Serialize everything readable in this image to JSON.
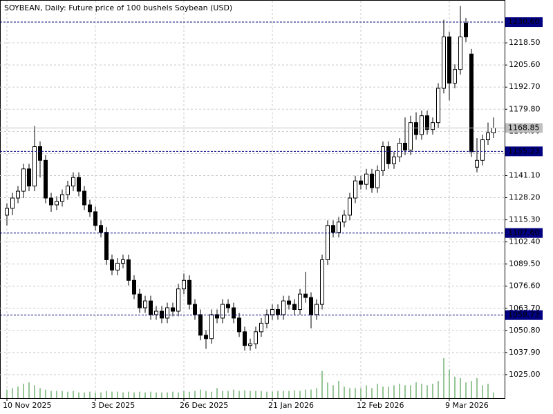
{
  "chart_data": {
    "type": "candlestick",
    "title": "SOYBEAN, Daily:  Future price of 100 bushels Soybean (USD)",
    "categories": [
      "10 Nov 2025",
      null,
      null,
      null,
      null,
      null,
      null,
      null,
      null,
      null,
      null,
      null,
      null,
      null,
      null,
      null,
      "3 Dec 2025",
      null,
      null,
      null,
      null,
      null,
      null,
      null,
      null,
      null,
      null,
      null,
      null,
      null,
      null,
      null,
      "26 Dec 2025",
      null,
      null,
      null,
      null,
      null,
      null,
      null,
      null,
      null,
      null,
      null,
      null,
      null,
      null,
      null,
      "21 Jan 2026",
      null,
      null,
      null,
      null,
      null,
      null,
      null,
      null,
      null,
      null,
      null,
      null,
      null,
      null,
      null,
      "12 Feb 2026",
      null,
      null,
      null,
      null,
      null,
      null,
      null,
      null,
      null,
      null,
      null,
      null,
      null,
      null,
      null,
      "9 Mar 2026",
      null,
      null,
      null,
      null,
      null,
      null,
      null,
      null
    ],
    "open": [
      1118,
      1122,
      1128,
      1132,
      1145,
      1135,
      1158,
      1150,
      1128,
      1124,
      1126,
      1130,
      1135,
      1140,
      1132,
      1124,
      1120,
      1112,
      1108,
      1092,
      1086,
      1090,
      1092,
      1080,
      1072,
      1064,
      1068,
      1060,
      1062,
      1058,
      1064,
      1062,
      1075,
      1080,
      1066,
      1060,
      1048,
      1046,
      1060,
      1058,
      1066,
      1064,
      1058,
      1050,
      1042,
      1043,
      1050,
      1055,
      1060,
      1063,
      1060,
      1068,
      1066,
      1063,
      1072,
      1070,
      1060,
      1066,
      1092,
      1112,
      1108,
      1114,
      1118,
      1128,
      1138,
      1136,
      1142,
      1134,
      1144,
      1158,
      1148,
      1152,
      1160,
      1156,
      1172,
      1165,
      1176,
      1168,
      1172,
      1192,
      1222,
      1195,
      1203,
      1230,
      1212,
      1146,
      1150,
      1162,
      1166
    ],
    "high": [
      1125,
      1131,
      1135,
      1148,
      1148,
      1170,
      1161,
      1153,
      1131,
      1129,
      1133,
      1138,
      1143,
      1143,
      1135,
      1127,
      1123,
      1115,
      1111,
      1095,
      1093,
      1095,
      1095,
      1083,
      1075,
      1071,
      1071,
      1065,
      1065,
      1067,
      1067,
      1078,
      1084,
      1083,
      1069,
      1063,
      1051,
      1063,
      1063,
      1069,
      1069,
      1067,
      1061,
      1053,
      1046,
      1053,
      1058,
      1063,
      1066,
      1066,
      1071,
      1071,
      1069,
      1075,
      1085,
      1073,
      1069,
      1095,
      1115,
      1115,
      1117,
      1121,
      1131,
      1141,
      1141,
      1145,
      1145,
      1147,
      1161,
      1161,
      1155,
      1163,
      1175,
      1176,
      1178,
      1179,
      1179,
      1175,
      1195,
      1232,
      1225,
      1206,
      1240,
      1233,
      1215,
      1163,
      1165,
      1172,
      1175
    ],
    "low": [
      1112,
      1118,
      1125,
      1128,
      1132,
      1132,
      1140,
      1125,
      1120,
      1121,
      1123,
      1127,
      1132,
      1129,
      1121,
      1117,
      1109,
      1105,
      1089,
      1083,
      1083,
      1087,
      1077,
      1069,
      1061,
      1061,
      1057,
      1057,
      1055,
      1055,
      1059,
      1059,
      1072,
      1063,
      1057,
      1045,
      1040,
      1043,
      1055,
      1055,
      1061,
      1055,
      1047,
      1039,
      1039,
      1040,
      1047,
      1052,
      1057,
      1057,
      1057,
      1063,
      1060,
      1060,
      1067,
      1052,
      1057,
      1063,
      1089,
      1105,
      1105,
      1111,
      1115,
      1125,
      1133,
      1133,
      1131,
      1131,
      1141,
      1145,
      1145,
      1149,
      1153,
      1153,
      1162,
      1162,
      1165,
      1165,
      1169,
      1189,
      1185,
      1192,
      1200,
      1219,
      1152,
      1143,
      1147,
      1159,
      1163
    ],
    "close": [
      1122,
      1128,
      1132,
      1145,
      1135,
      1158,
      1150,
      1128,
      1124,
      1126,
      1130,
      1135,
      1140,
      1132,
      1124,
      1120,
      1112,
      1108,
      1092,
      1086,
      1090,
      1092,
      1080,
      1072,
      1064,
      1068,
      1060,
      1062,
      1058,
      1064,
      1062,
      1075,
      1080,
      1066,
      1060,
      1048,
      1046,
      1060,
      1058,
      1066,
      1064,
      1058,
      1050,
      1042,
      1043,
      1050,
      1055,
      1060,
      1063,
      1060,
      1068,
      1066,
      1063,
      1072,
      1070,
      1060,
      1066,
      1092,
      1112,
      1108,
      1114,
      1118,
      1128,
      1138,
      1136,
      1142,
      1134,
      1144,
      1158,
      1148,
      1152,
      1160,
      1156,
      1172,
      1165,
      1176,
      1168,
      1172,
      1192,
      1222,
      1195,
      1203,
      1222,
      1222,
      1155,
      1150,
      1162,
      1166,
      1168.85
    ],
    "volume": [
      12,
      14,
      16,
      20,
      22,
      18,
      14,
      12,
      10,
      10,
      10,
      9,
      10,
      8,
      8,
      9,
      8,
      8,
      10,
      9,
      9,
      8,
      9,
      8,
      9,
      8,
      9,
      8,
      8,
      8,
      9,
      8,
      10,
      9,
      10,
      12,
      10,
      9,
      14,
      10,
      10,
      12,
      10,
      11,
      10,
      10,
      10,
      9,
      9,
      10,
      10,
      10,
      11,
      10,
      12,
      12,
      14,
      38,
      22,
      18,
      24,
      16,
      14,
      14,
      14,
      18,
      14,
      20,
      16,
      16,
      18,
      20,
      18,
      18,
      22,
      20,
      18,
      20,
      24,
      56,
      40,
      30,
      28,
      22,
      24,
      28,
      18,
      20,
      8
    ],
    "up_color": "#ffffff",
    "down_color": "#000000",
    "wick_color": "#000000",
    "volume_color": "#2e8b2e",
    "ylim": [
      1011.3,
      1243.1
    ],
    "yticks": [
      {
        "value": 1025,
        "label": "1025.00"
      },
      {
        "value": 1037.9,
        "label": "1037.90"
      },
      {
        "value": 1050.8,
        "label": "1050.80"
      },
      {
        "value": 1063.7,
        "label": "1063.70"
      },
      {
        "value": 1076.6,
        "label": "1076.60"
      },
      {
        "value": 1089.5,
        "label": "1089.50"
      },
      {
        "value": 1102.4,
        "label": "1102.40"
      },
      {
        "value": 1115.3,
        "label": "1115.30"
      },
      {
        "value": 1128.2,
        "label": "1128.20"
      },
      {
        "value": 1141.1,
        "label": "1141.10"
      },
      {
        "value": 1154,
        "label": "1154.00"
      },
      {
        "value": 1166.9,
        "label": "1166.90"
      },
      {
        "value": 1179.8,
        "label": "1179.80"
      },
      {
        "value": 1192.7,
        "label": "1192.70"
      },
      {
        "value": 1205.6,
        "label": "1205.60"
      },
      {
        "value": 1218.5,
        "label": "1218.50"
      }
    ],
    "grid": true,
    "levels": [
      {
        "value": 1230.6,
        "label": "1230.60",
        "color": "#000080"
      },
      {
        "value": 1155.23,
        "label": "1155.23",
        "color": "#000080"
      },
      {
        "value": 1107.6,
        "label": "1107.60",
        "color": "#000080"
      },
      {
        "value": 1059.73,
        "label": "1059.73",
        "color": "#000080"
      }
    ],
    "current_price": {
      "value": 1168.85,
      "label": "1168.85",
      "color": "#c0c0c0"
    }
  }
}
